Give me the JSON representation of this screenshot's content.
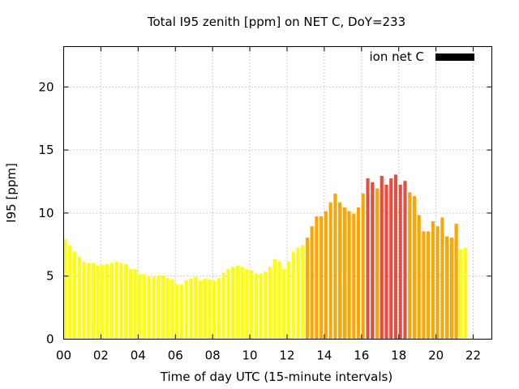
{
  "chart_data": {
    "type": "bar",
    "title": "Total I95 zenith [ppm] on NET C, DoY=233",
    "xlabel": "Time of day UTC (15-minute intervals)",
    "ylabel": "I95 [ppm]",
    "xlim": [
      0,
      23
    ],
    "ylim": [
      0,
      23.2
    ],
    "x_ticks": [
      "00",
      "02",
      "04",
      "06",
      "08",
      "10",
      "12",
      "14",
      "16",
      "18",
      "20",
      "22"
    ],
    "x_tick_values": [
      0,
      2,
      4,
      6,
      8,
      10,
      12,
      14,
      16,
      18,
      20,
      22
    ],
    "y_ticks": [
      "0",
      "5",
      "10",
      "15",
      "20"
    ],
    "y_tick_values": [
      0,
      5,
      10,
      15,
      20
    ],
    "grid": true,
    "legend": {
      "position": "top-right",
      "label": "ion net C",
      "color": "#000000"
    },
    "interval_hours": 0.25,
    "colors": {
      "low": "#ffff00",
      "mid": "#ffa500",
      "high": "#e84c3d"
    },
    "series": [
      {
        "values": [
          7.95,
          7.45,
          6.95,
          6.55,
          6.15,
          6.05,
          6.05,
          5.85,
          5.9,
          5.95,
          6.05,
          6.15,
          6.05,
          5.95,
          5.55,
          5.55,
          5.15,
          5.15,
          4.95,
          4.95,
          5.05,
          5.05,
          4.85,
          4.75,
          4.35,
          4.35,
          4.65,
          4.8,
          4.95,
          4.65,
          4.8,
          4.75,
          4.65,
          4.85,
          5.25,
          5.55,
          5.75,
          5.85,
          5.75,
          5.55,
          5.45,
          5.2,
          5.2,
          5.35,
          5.75,
          6.35,
          6.15,
          5.55,
          6.15,
          6.95,
          7.25,
          7.45,
          8.05,
          8.95,
          9.75,
          9.75,
          10.15,
          10.85,
          11.55,
          10.85,
          10.45,
          10.15,
          9.95,
          10.45,
          11.55,
          12.75,
          12.45,
          11.95,
          12.95,
          12.25,
          12.75,
          13.05,
          12.25,
          12.55,
          11.65,
          11.35,
          9.85,
          8.55,
          8.55,
          9.35,
          8.95,
          9.65,
          8.15,
          8.05,
          9.15,
          7.15,
          7.25
        ],
        "colors": [
          "low",
          "low",
          "low",
          "low",
          "low",
          "low",
          "low",
          "low",
          "low",
          "low",
          "low",
          "low",
          "low",
          "low",
          "low",
          "low",
          "low",
          "low",
          "low",
          "low",
          "low",
          "low",
          "low",
          "low",
          "low",
          "low",
          "low",
          "low",
          "low",
          "low",
          "low",
          "low",
          "low",
          "low",
          "low",
          "low",
          "low",
          "low",
          "low",
          "low",
          "low",
          "low",
          "low",
          "low",
          "low",
          "low",
          "low",
          "low",
          "low",
          "low",
          "low",
          "low",
          "mid",
          "mid",
          "mid",
          "mid",
          "mid",
          "mid",
          "mid",
          "mid",
          "mid",
          "mid",
          "mid",
          "mid",
          "mid",
          "high",
          "high",
          "mid",
          "high",
          "high",
          "high",
          "high",
          "high",
          "high",
          "mid",
          "mid",
          "mid",
          "mid",
          "mid",
          "mid",
          "mid",
          "mid",
          "mid",
          "mid",
          "mid",
          "low",
          "low"
        ]
      }
    ]
  }
}
